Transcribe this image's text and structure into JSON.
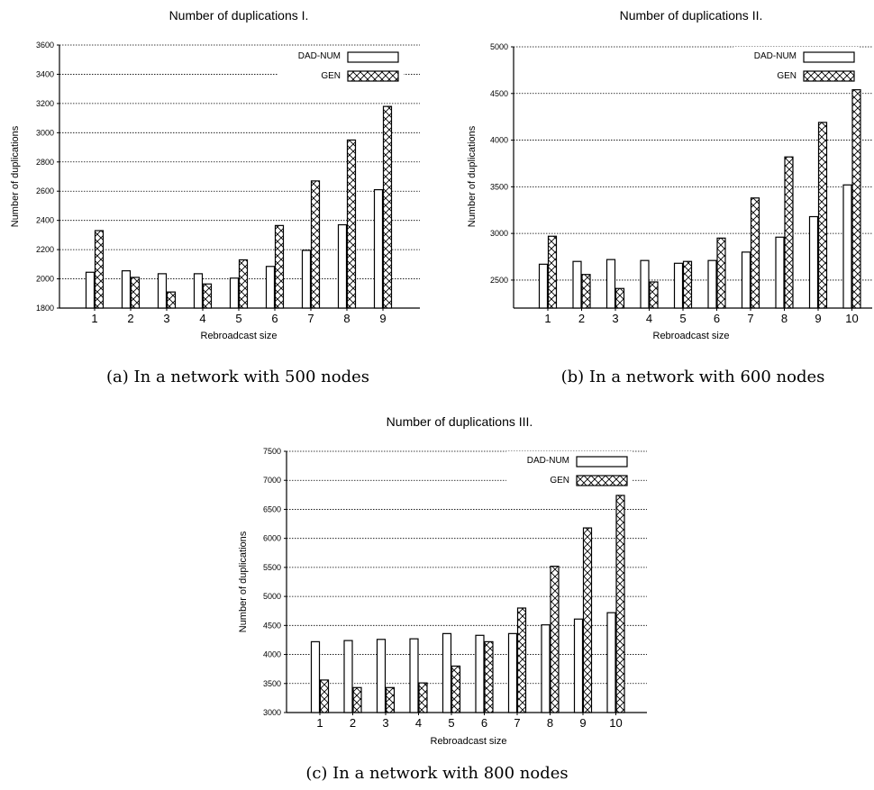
{
  "chart_data": [
    {
      "type": "bar",
      "title": "Number of duplications I.",
      "caption": "(a) In a network with 500 nodes",
      "xlabel": "Rebroadcast size",
      "ylabel": "Number of duplications",
      "ylim": [
        1800,
        3600
      ],
      "yticks": [
        1800,
        2000,
        2200,
        2400,
        2600,
        2800,
        3000,
        3200,
        3400,
        3600
      ],
      "grid": true,
      "legend_position": "top-right",
      "categories": [
        "1",
        "2",
        "3",
        "4",
        "5",
        "6",
        "7",
        "8",
        "9"
      ],
      "series": [
        {
          "name": "DAD-NUM",
          "values": [
            2045,
            2055,
            2035,
            2035,
            2005,
            2085,
            2195,
            2370,
            2610
          ]
        },
        {
          "name": "GEN",
          "values": [
            2330,
            2010,
            1910,
            1965,
            2130,
            2365,
            2670,
            2950,
            3180
          ]
        }
      ]
    },
    {
      "type": "bar",
      "title": "Number of duplications II.",
      "caption": "(b) In a network with 600 nodes",
      "xlabel": "Rebroadcast size",
      "ylabel": "Number of duplications",
      "ylim": [
        2200,
        5000
      ],
      "yticks": [
        2500,
        3000,
        3500,
        4000,
        4500,
        5000
      ],
      "grid": true,
      "legend_position": "top-right",
      "categories": [
        "1",
        "2",
        "3",
        "4",
        "5",
        "6",
        "7",
        "8",
        "9",
        "10"
      ],
      "series": [
        {
          "name": "DAD-NUM",
          "values": [
            2670,
            2700,
            2720,
            2710,
            2680,
            2710,
            2800,
            2960,
            3180,
            3520
          ]
        },
        {
          "name": "GEN",
          "values": [
            2970,
            2560,
            2410,
            2480,
            2700,
            2950,
            3380,
            3820,
            4190,
            4540
          ]
        }
      ]
    },
    {
      "type": "bar",
      "title": "Number of duplications III.",
      "caption": "(c) In a network with 800 nodes",
      "xlabel": "Rebroadcast size",
      "ylabel": "Number of duplications",
      "ylim": [
        3000,
        7500
      ],
      "yticks": [
        3000,
        3500,
        4000,
        4500,
        5000,
        5500,
        6000,
        6500,
        7000,
        7500
      ],
      "grid": true,
      "legend_position": "top-right",
      "categories": [
        "1",
        "2",
        "3",
        "4",
        "5",
        "6",
        "7",
        "8",
        "9",
        "10"
      ],
      "series": [
        {
          "name": "DAD-NUM",
          "values": [
            4220,
            4240,
            4260,
            4270,
            4360,
            4330,
            4360,
            4510,
            4610,
            4720
          ]
        },
        {
          "name": "GEN",
          "values": [
            3560,
            3430,
            3430,
            3510,
            3800,
            4220,
            4800,
            5520,
            6180,
            6740
          ]
        }
      ]
    }
  ]
}
